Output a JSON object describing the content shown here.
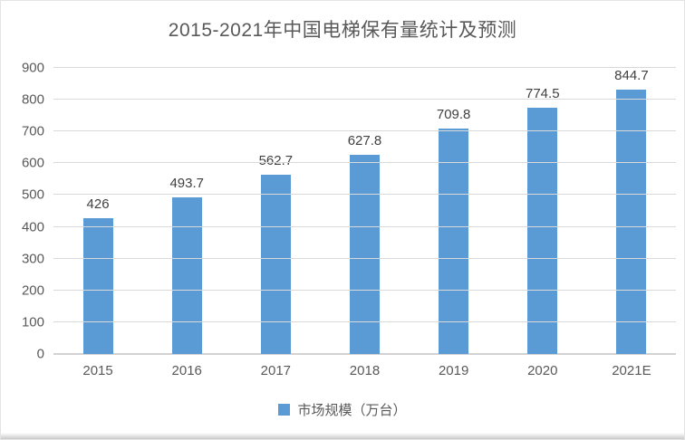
{
  "chart_data": {
    "type": "bar",
    "title": "2015-2021年中国电梯保有量统计及预测",
    "categories": [
      "2015",
      "2016",
      "2017",
      "2018",
      "2019",
      "2020",
      "2021E"
    ],
    "values": [
      426,
      493.7,
      562.7,
      627.8,
      709.8,
      774.5,
      844.7
    ],
    "value_labels": [
      "426",
      "493.7",
      "562.7",
      "627.8",
      "709.8",
      "774.5",
      "844.7"
    ],
    "xlabel": "",
    "ylabel": "",
    "ylim": [
      0,
      900
    ],
    "yticks": [
      0,
      100,
      200,
      300,
      400,
      500,
      600,
      700,
      800,
      900
    ],
    "grid": true,
    "legend": {
      "position": "bottom",
      "label": "市场规模（万台）"
    },
    "colors": {
      "bar": "#5b9bd5",
      "gridline": "#d9d9d9",
      "axis_line": "#d2d2d2",
      "title_text": "#595959",
      "tick_text": "#595959",
      "value_text": "#404040"
    }
  }
}
